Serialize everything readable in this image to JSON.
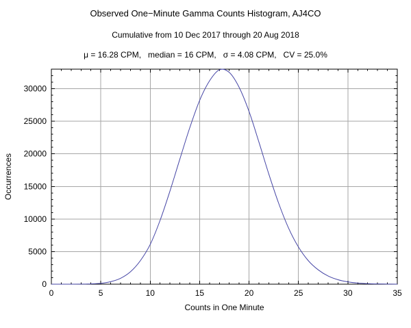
{
  "chart_data": {
    "type": "line",
    "title": "Observed One−Minute Gamma Counts Histogram, AJ4CO",
    "subtitle": "Cumulative from 10 Dec 2017 through 20 Aug 2018",
    "stats_label": "μ = 16.28 CPM,   median = 16 CPM,   σ = 4.08 CPM,   CV = 25.0%",
    "xlabel": "Counts in One Minute",
    "ylabel": "Occurrences",
    "xlim": [
      0,
      35
    ],
    "ylim": [
      0,
      33000
    ],
    "xticks": [
      0,
      5,
      10,
      15,
      20,
      25,
      30,
      35
    ],
    "yticks": [
      0,
      5000,
      10000,
      15000,
      20000,
      25000,
      30000
    ],
    "x_minor_step": 1,
    "y_minor_step": 1000,
    "grid": true,
    "legend": "none",
    "line_color": "#4545a5",
    "grid_color": "#a6a6a6",
    "frame_color": "#000000",
    "x": [
      0,
      1,
      2,
      3,
      4,
      5,
      6,
      7,
      8,
      9,
      10,
      11,
      12,
      13,
      14,
      15,
      16,
      17,
      18,
      19,
      20,
      21,
      22,
      23,
      24,
      25,
      26,
      27,
      28,
      29,
      30,
      31,
      32,
      33,
      34,
      35
    ],
    "y": [
      0,
      0,
      0,
      10,
      40,
      130,
      380,
      900,
      1900,
      3600,
      6100,
      9800,
      14300,
      19200,
      24000,
      28200,
      31200,
      32900,
      32500,
      30200,
      26500,
      21800,
      16900,
      12400,
      8600,
      5700,
      3600,
      2200,
      1250,
      680,
      350,
      170,
      80,
      35,
      15,
      0
    ]
  }
}
